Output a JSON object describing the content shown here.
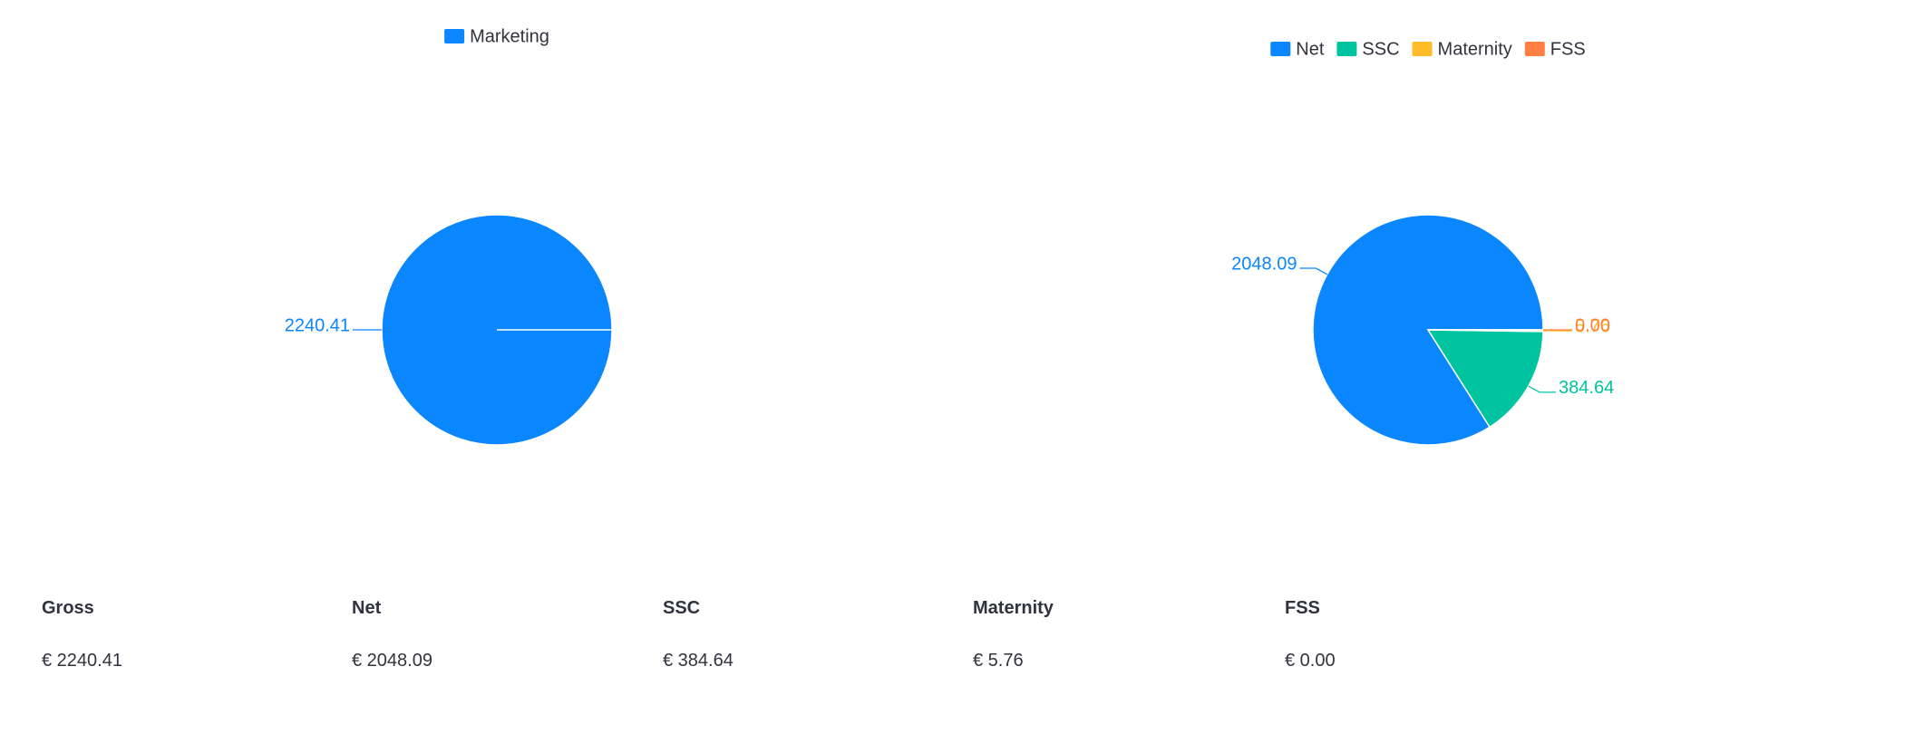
{
  "chart_data": [
    {
      "type": "pie",
      "categories": [
        "Marketing"
      ],
      "values": [
        2240.41
      ],
      "colors": [
        "#0a86ff"
      ]
    },
    {
      "type": "pie",
      "categories": [
        "Net",
        "SSC",
        "Maternity",
        "FSS"
      ],
      "values": [
        2048.09,
        384.64,
        5.76,
        0.0
      ],
      "value_labels": [
        "2048.09",
        "384.64",
        "5.76",
        "0.00"
      ],
      "colors": [
        "#0a86ff",
        "#00c49f",
        "#ffbb28",
        "#ff8042"
      ]
    }
  ],
  "table": {
    "headers": [
      "Gross",
      "Net",
      "SSC",
      "Maternity",
      "FSS"
    ],
    "values": [
      "€ 2240.41",
      "€ 2048.09",
      "€ 384.64",
      "€ 5.76",
      "€ 0.00"
    ]
  }
}
